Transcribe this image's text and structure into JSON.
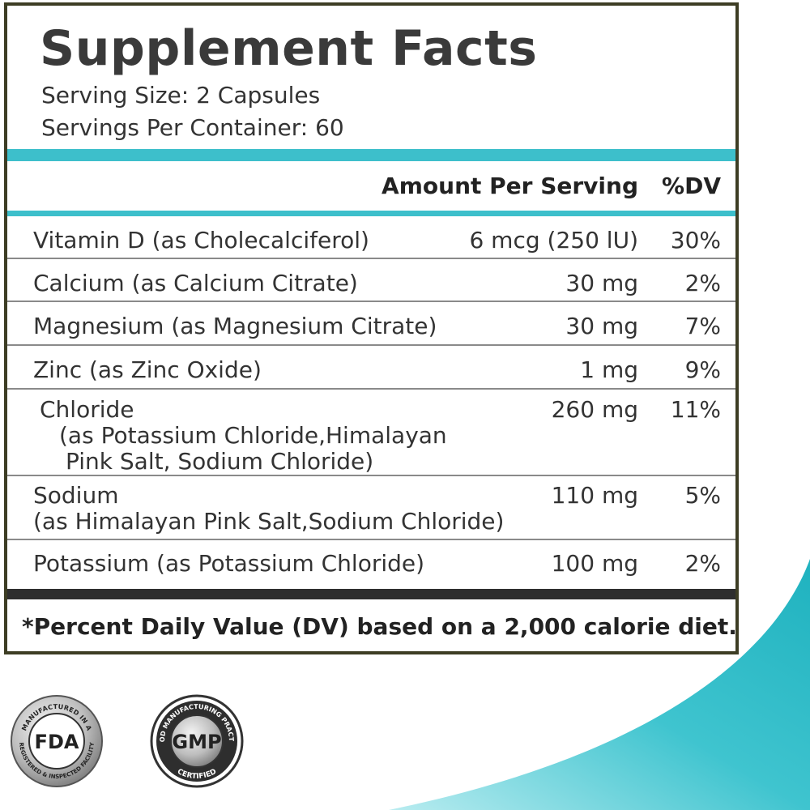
{
  "label": {
    "title": "Supplement Facts",
    "serving_size": "Serving Size: 2 Capsules",
    "servings_per_container": "Servings Per Container: 60",
    "header": {
      "amount": "Amount Per Serving",
      "dv": "%DV"
    },
    "rows": [
      {
        "name": [
          "Vitamin D (as Cholecalciferol)"
        ],
        "amount": "6 mcg (250 lU)",
        "dv": "30%"
      },
      {
        "name": [
          "Calcium (as Calcium Citrate)"
        ],
        "amount": "30 mg",
        "dv": "2%"
      },
      {
        "name": [
          "Magnesium (as Magnesium Citrate)"
        ],
        "amount": "30 mg",
        "dv": "7%"
      },
      {
        "name": [
          "Zinc (as Zinc Oxide)"
        ],
        "amount": "1 mg",
        "dv": "9%"
      },
      {
        "name": [
          "Chloride",
          "(as Potassium Chloride,Himalayan",
          "Pink Salt, Sodium Chloride)"
        ],
        "amount": "260 mg",
        "dv": "11%"
      },
      {
        "name": [
          "Sodium",
          "(as Himalayan Pink Salt,Sodium Chloride)"
        ],
        "amount": "110 mg",
        "dv": "5%"
      },
      {
        "name": [
          "Potassium (as Potassium Chloride)"
        ],
        "amount": "100 mg",
        "dv": "2%"
      }
    ],
    "footnote": "*Percent Daily Value (DV) based on a 2,000 calorie diet."
  },
  "badges": [
    {
      "top": "MANUFACTURED IN A",
      "center": "FDA",
      "bottom": "REGISTERED & INSPECTED FACILITY"
    },
    {
      "top": "GOOD MANUFACTURING PRACTICE",
      "center": "GMP",
      "bottom": "CERTIFIED"
    }
  ]
}
